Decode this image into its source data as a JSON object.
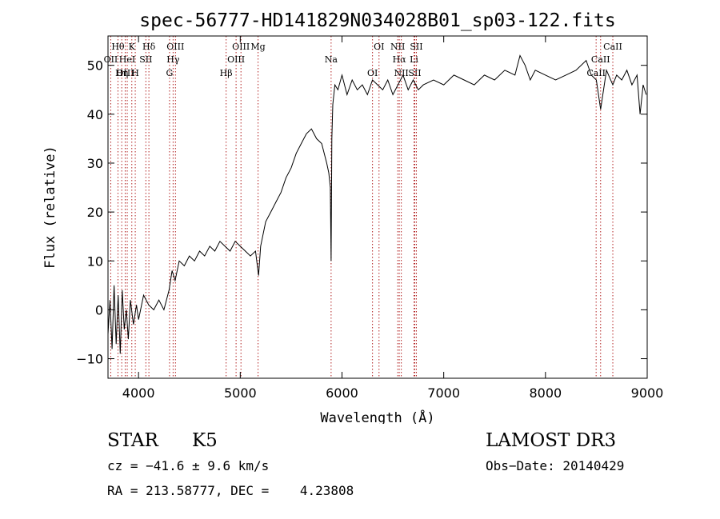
{
  "chart_data": {
    "type": "line",
    "title": "spec-56777-HD141829N034028B01_sp03-122.fits",
    "xlabel": "Wavelength (Å)",
    "ylabel": "Flux (relative)",
    "xlim": [
      3700,
      9000
    ],
    "ylim": [
      -14,
      56
    ],
    "x_ticks": [
      4000,
      5000,
      6000,
      7000,
      8000,
      9000
    ],
    "y_ticks": [
      -10,
      0,
      10,
      20,
      30,
      40,
      50
    ],
    "grid": false,
    "line_color": "#000000",
    "marker_color": "#b22222",
    "series": [
      {
        "x": [
          3700,
          3720,
          3740,
          3760,
          3780,
          3800,
          3820,
          3840,
          3860,
          3880,
          3900,
          3920,
          3950,
          3980,
          4000,
          4050,
          4100,
          4150,
          4200,
          4250,
          4300,
          4330,
          4360,
          4400,
          4450,
          4500,
          4550,
          4600,
          4650,
          4700,
          4750,
          4800,
          4850,
          4900,
          4950,
          5000,
          5050,
          5100,
          5150,
          5180,
          5200,
          5250,
          5300,
          5350,
          5400,
          5450,
          5500,
          5550,
          5600,
          5650,
          5700,
          5750,
          5800,
          5850,
          5870,
          5885,
          5893,
          5900,
          5910,
          5930,
          5960,
          6000,
          6050,
          6100,
          6150,
          6200,
          6250,
          6300,
          6350,
          6400,
          6450,
          6500,
          6550,
          6600,
          6650,
          6700,
          6750,
          6800,
          6900,
          7000,
          7100,
          7200,
          7300,
          7400,
          7500,
          7600,
          7700,
          7750,
          7800,
          7850,
          7900,
          8000,
          8100,
          8200,
          8300,
          8400,
          8450,
          8500,
          8542,
          8600,
          8662,
          8700,
          8750,
          8800,
          8850,
          8900,
          8930,
          8960,
          8990
        ],
        "y": [
          -5,
          2,
          -8,
          5,
          -7,
          3,
          -9,
          4,
          -4,
          0,
          -6,
          2,
          -3,
          1,
          -2,
          3,
          1,
          0,
          2,
          0,
          4,
          8,
          6,
          10,
          9,
          11,
          10,
          12,
          11,
          13,
          12,
          14,
          13,
          12,
          14,
          13,
          12,
          11,
          12,
          7,
          13,
          18,
          20,
          22,
          24,
          27,
          29,
          32,
          34,
          36,
          37,
          35,
          34,
          30,
          28,
          25,
          10,
          35,
          42,
          46,
          45,
          48,
          44,
          47,
          45,
          46,
          44,
          47,
          46,
          45,
          47,
          44,
          46,
          48,
          45,
          47,
          45,
          46,
          47,
          46,
          48,
          47,
          46,
          48,
          47,
          49,
          48,
          52,
          50,
          47,
          49,
          48,
          47,
          48,
          49,
          51,
          48,
          47,
          41,
          49,
          46,
          48,
          47,
          49,
          46,
          48,
          40,
          46,
          44
        ]
      }
    ],
    "lines": [
      {
        "label": "Hθ",
        "x": 3798
      },
      {
        "label": "OII",
        "x": 3727
      },
      {
        "label": "OIII",
        "x": 3869
      },
      {
        "label": "K",
        "x": 3934
      },
      {
        "label": "HeI",
        "x": 3889
      },
      {
        "label": "Hη",
        "x": 3835
      },
      {
        "label": "Hδ",
        "x": 4102
      },
      {
        "label": "SII",
        "x": 4072
      },
      {
        "label": "H",
        "x": 3968
      },
      {
        "label": "OIII",
        "x": 4363
      },
      {
        "label": "Hγ",
        "x": 4340
      },
      {
        "label": "G",
        "x": 4305
      },
      {
        "label": "OIII",
        "x": 5007
      },
      {
        "label": "OIII",
        "x": 4959
      },
      {
        "label": "Hβ",
        "x": 4861
      },
      {
        "label": "Mg",
        "x": 5175
      },
      {
        "label": "Na",
        "x": 5893
      },
      {
        "label": "OI",
        "x": 6300
      },
      {
        "label": "OI",
        "x": 6364
      },
      {
        "label": "Hα",
        "x": 6563
      },
      {
        "label": "SII",
        "x": 6716
      },
      {
        "label": "NII",
        "x": 6548
      },
      {
        "label": "Li",
        "x": 6708
      },
      {
        "label": "NII",
        "x": 6583
      },
      {
        "label": "SII",
        "x": 6731
      },
      {
        "label": "CaII",
        "x": 8542
      },
      {
        "label": "CaII",
        "x": 8498
      },
      {
        "label": "CaII",
        "x": 8662
      }
    ]
  },
  "info": {
    "object_class": "STAR",
    "subclass": "K5",
    "survey": "LAMOST DR3",
    "cz": "cz = −41.6 ± 9.6 km/s",
    "obs_date": "Obs−Date: 20140429",
    "coords": "RA = 213.58777, DEC =    4.23808"
  }
}
